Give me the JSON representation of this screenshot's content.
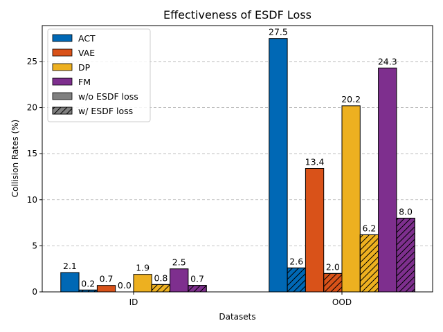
{
  "chart_data": {
    "type": "bar",
    "title": "Effectiveness of ESDF Loss",
    "xlabel": "Datasets",
    "ylabel": "Collision Rates (%)",
    "categories": [
      "ID",
      "OOD"
    ],
    "ylim": [
      0,
      28.9
    ],
    "yticks": [
      0,
      5,
      10,
      15,
      20,
      25
    ],
    "grid": "y-dashed",
    "legend_position": "top-left",
    "series": [
      {
        "name": "ACT",
        "variant": "w/o ESDF loss",
        "color": "#0068b5",
        "hatch": false,
        "values": [
          2.1,
          27.5
        ]
      },
      {
        "name": "ACT",
        "variant": "w/ ESDF loss",
        "color": "#0068b5",
        "hatch": true,
        "values": [
          0.2,
          2.6
        ]
      },
      {
        "name": "VAE",
        "variant": "w/o ESDF loss",
        "color": "#d95219",
        "hatch": false,
        "values": [
          0.7,
          13.4
        ]
      },
      {
        "name": "VAE",
        "variant": "w/ ESDF loss",
        "color": "#d95219",
        "hatch": true,
        "values": [
          0.0,
          2.0
        ]
      },
      {
        "name": "DP",
        "variant": "w/o ESDF loss",
        "color": "#edb020",
        "hatch": false,
        "values": [
          1.9,
          20.2
        ]
      },
      {
        "name": "DP",
        "variant": "w/ ESDF loss",
        "color": "#edb020",
        "hatch": true,
        "values": [
          0.8,
          6.2
        ]
      },
      {
        "name": "FM",
        "variant": "w/o ESDF loss",
        "color": "#7e2f8e",
        "hatch": false,
        "values": [
          2.5,
          24.3
        ]
      },
      {
        "name": "FM",
        "variant": "w/ ESDF loss",
        "color": "#7e2f8e",
        "hatch": true,
        "values": [
          0.7,
          8.0
        ]
      }
    ],
    "legend": [
      {
        "label": "ACT",
        "color": "#0068b5",
        "hatch": false
      },
      {
        "label": "VAE",
        "color": "#d95219",
        "hatch": false
      },
      {
        "label": "DP",
        "color": "#edb020",
        "hatch": false
      },
      {
        "label": "FM",
        "color": "#7e2f8e",
        "hatch": false
      },
      {
        "label": "w/o ESDF loss",
        "color": "#808080",
        "hatch": false
      },
      {
        "label": "w/ ESDF loss",
        "color": "#808080",
        "hatch": true
      }
    ]
  }
}
